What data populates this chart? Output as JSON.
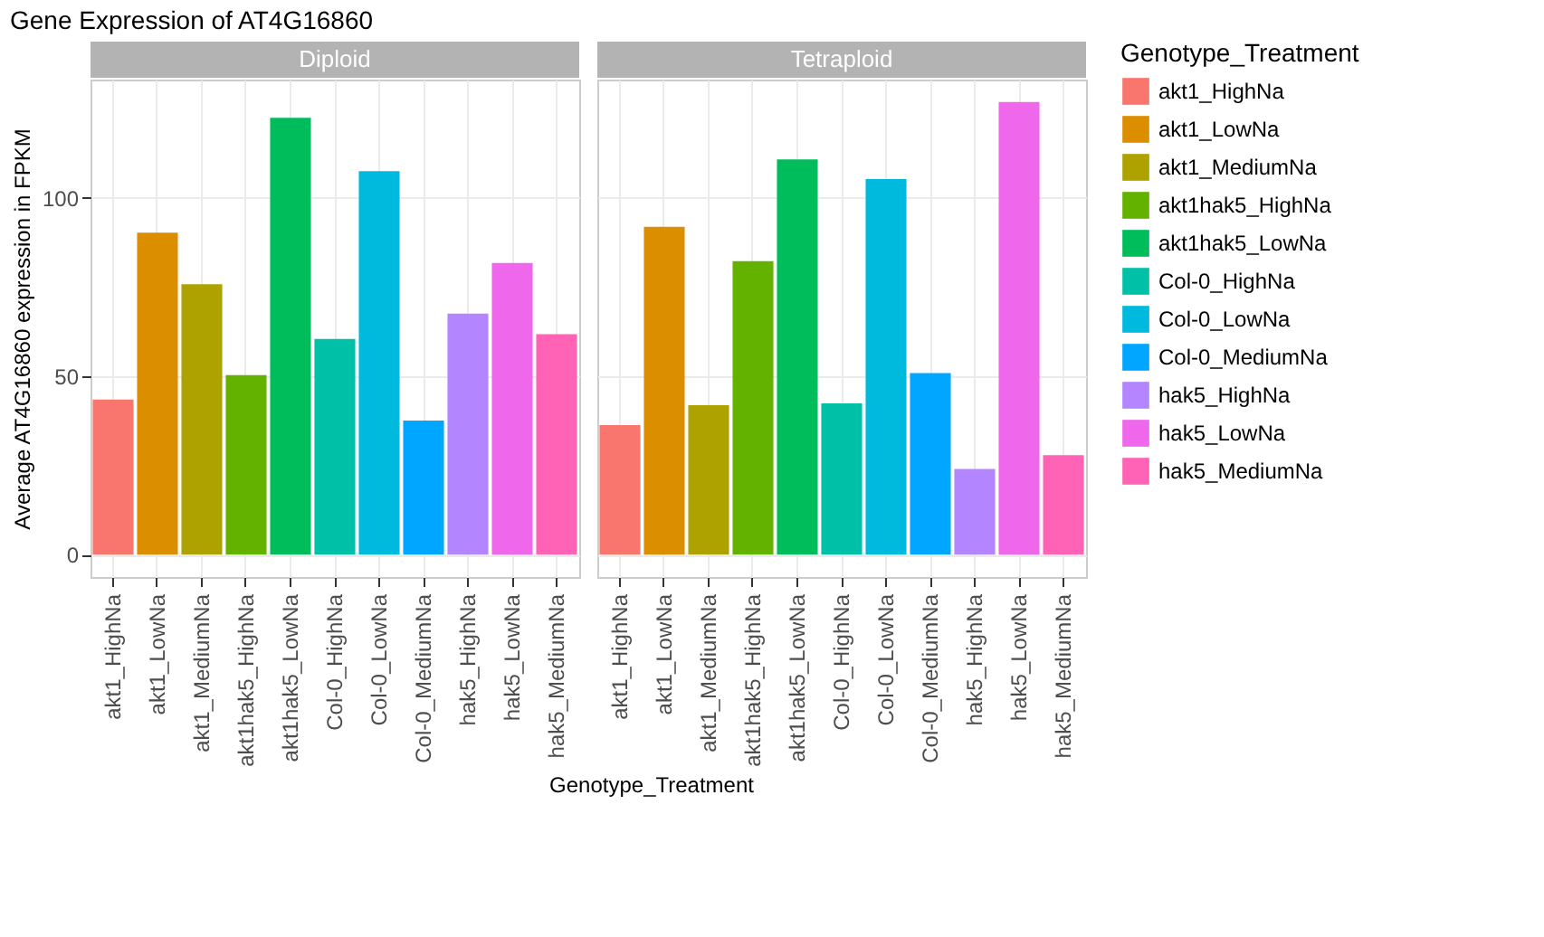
{
  "chart_data": [
    {
      "type": "bar",
      "title": "Gene Expression of AT4G16860",
      "subtitle": "Diploid",
      "xlabel": "Genotype_Treatment",
      "ylabel": "Average AT4G16860 expression in FPKM",
      "legend_title": "Genotype_Treatment",
      "legend": "right",
      "grid": true,
      "categories": [
        "akt1_HighNa",
        "akt1_LowNa",
        "akt1_MediumNa",
        "akt1hak5_HighNa",
        "akt1hak5_LowNa",
        "Col-0_HighNa",
        "Col-0_LowNa",
        "Col-0_MediumNa",
        "hak5_HighNa",
        "hak5_LowNa",
        "hak5_MediumNa"
      ],
      "series": [
        {
          "name": "akt1_HighNa",
          "color": "#F8766D",
          "values": [
            43.5,
            null,
            null,
            null,
            null,
            null,
            null,
            null,
            null,
            null,
            null
          ]
        },
        {
          "name": "akt1_LowNa",
          "color": "#DB8E00",
          "values": [
            null,
            90.3,
            null,
            null,
            null,
            null,
            null,
            null,
            null,
            null,
            null
          ]
        },
        {
          "name": "akt1_MediumNa",
          "color": "#AEA200",
          "values": [
            null,
            null,
            75.8,
            null,
            null,
            null,
            null,
            null,
            null,
            null,
            null
          ]
        },
        {
          "name": "akt1hak5_HighNa",
          "color": "#64B200",
          "values": [
            null,
            null,
            null,
            50.3,
            null,
            null,
            null,
            null,
            null,
            null,
            null
          ]
        },
        {
          "name": "akt1hak5_LowNa",
          "color": "#00BD5C",
          "values": [
            null,
            null,
            null,
            null,
            122.5,
            null,
            null,
            null,
            null,
            null,
            null
          ]
        },
        {
          "name": "Col-0_HighNa",
          "color": "#00C1A7",
          "values": [
            null,
            null,
            null,
            null,
            null,
            60.5,
            null,
            null,
            null,
            null,
            null
          ]
        },
        {
          "name": "Col-0_LowNa",
          "color": "#00BADE",
          "values": [
            null,
            null,
            null,
            null,
            null,
            null,
            107.5,
            null,
            null,
            null,
            null
          ]
        },
        {
          "name": "Col-0_MediumNa",
          "color": "#00A6FF",
          "values": [
            null,
            null,
            null,
            null,
            null,
            null,
            null,
            37.6,
            null,
            null,
            null
          ]
        },
        {
          "name": "hak5_HighNa",
          "color": "#B385FF",
          "values": [
            null,
            null,
            null,
            null,
            null,
            null,
            null,
            null,
            67.6,
            null,
            null
          ]
        },
        {
          "name": "hak5_LowNa",
          "color": "#EF67EB",
          "values": [
            null,
            null,
            null,
            null,
            null,
            null,
            null,
            null,
            null,
            81.8,
            null
          ]
        },
        {
          "name": "hak5_MediumNa",
          "color": "#FF63B6",
          "values": [
            null,
            null,
            null,
            null,
            null,
            null,
            null,
            null,
            null,
            null,
            61.8
          ]
        }
      ],
      "ylim": [
        -6.3,
        133.2
      ],
      "yticks": [
        0,
        50,
        100
      ]
    },
    {
      "type": "bar",
      "subtitle": "Tetraploid",
      "grid": true,
      "tick_labels": "x",
      "categories": [
        "akt1_HighNa",
        "akt1_LowNa",
        "akt1_MediumNa",
        "akt1hak5_HighNa",
        "akt1hak5_LowNa",
        "Col-0_HighNa",
        "Col-0_LowNa",
        "Col-0_MediumNa",
        "hak5_HighNa",
        "hak5_LowNa",
        "hak5_MediumNa"
      ],
      "series": [
        {
          "color": "#F8766D",
          "values": [
            36.3,
            null,
            null,
            null,
            null,
            null,
            null,
            null,
            null,
            null,
            null
          ]
        },
        {
          "color": "#DB8E00",
          "values": [
            null,
            91.9,
            null,
            null,
            null,
            null,
            null,
            null,
            null,
            null,
            null
          ]
        },
        {
          "color": "#AEA200",
          "values": [
            null,
            null,
            41.9,
            null,
            null,
            null,
            null,
            null,
            null,
            null,
            null
          ]
        },
        {
          "color": "#64B200",
          "values": [
            null,
            null,
            null,
            82.3,
            null,
            null,
            null,
            null,
            null,
            null,
            null
          ]
        },
        {
          "color": "#00BD5C",
          "values": [
            null,
            null,
            null,
            null,
            110.8,
            null,
            null,
            null,
            null,
            null,
            null
          ]
        },
        {
          "color": "#00C1A7",
          "values": [
            null,
            null,
            null,
            null,
            null,
            42.4,
            null,
            null,
            null,
            null,
            null
          ]
        },
        {
          "color": "#00BADE",
          "values": [
            null,
            null,
            null,
            null,
            null,
            null,
            105.3,
            null,
            null,
            null,
            null
          ]
        },
        {
          "color": "#00A6FF",
          "values": [
            null,
            null,
            null,
            null,
            null,
            null,
            null,
            50.9,
            null,
            null,
            null
          ]
        },
        {
          "color": "#B385FF",
          "values": [
            null,
            null,
            null,
            null,
            null,
            null,
            null,
            null,
            24.0,
            null,
            null
          ]
        },
        {
          "color": "#EF67EB",
          "values": [
            null,
            null,
            null,
            null,
            null,
            null,
            null,
            null,
            null,
            126.9,
            null
          ]
        },
        {
          "color": "#FF63B6",
          "values": [
            null,
            null,
            null,
            null,
            null,
            null,
            null,
            null,
            null,
            null,
            27.9
          ]
        }
      ],
      "ylim": [
        -6.3,
        133.2
      ],
      "yticks": [
        0,
        50,
        100
      ]
    }
  ]
}
